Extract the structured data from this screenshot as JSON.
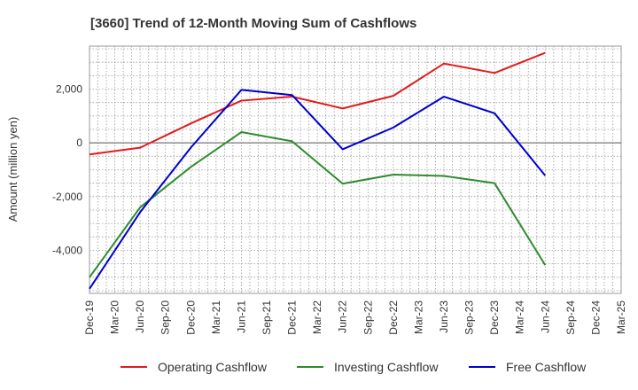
{
  "chart_data": {
    "type": "line",
    "title": "[3660]  Trend of 12-Month Moving Sum of Cashflows",
    "ylabel": "Amount (million yen)",
    "xlabel": "",
    "categories": [
      "Dec-19",
      "Mar-20",
      "Jun-20",
      "Sep-20",
      "Dec-20",
      "Mar-21",
      "Jun-21",
      "Sep-21",
      "Dec-21",
      "Mar-22",
      "Jun-22",
      "Sep-22",
      "Dec-22",
      "Mar-23",
      "Jun-23",
      "Sep-23",
      "Dec-23",
      "Mar-24",
      "Jun-24",
      "Sep-24",
      "Dec-24",
      "Mar-25"
    ],
    "yticks": [
      -4000,
      -2000,
      0,
      2000
    ],
    "ytick_labels": [
      "-4,000",
      "-2,000",
      "0",
      "2,000"
    ],
    "ylim": [
      -5600,
      3600
    ],
    "grid": true,
    "legend_position": "bottom",
    "series": [
      {
        "name": "Operating Cashflow",
        "color": "#e31a1c",
        "values": [
          -430,
          null,
          -180,
          null,
          720,
          null,
          1570,
          null,
          1720,
          null,
          1280,
          null,
          1750,
          null,
          2950,
          null,
          2600,
          null,
          3350,
          null,
          null,
          null
        ]
      },
      {
        "name": "Investing Cashflow",
        "color": "#2e8b2e",
        "values": [
          -5000,
          null,
          -2400,
          null,
          -900,
          null,
          400,
          null,
          60,
          null,
          -1520,
          null,
          -1180,
          null,
          -1230,
          null,
          -1500,
          null,
          -4550,
          null,
          null,
          null
        ]
      },
      {
        "name": "Free Cashflow",
        "color": "#0000cc",
        "values": [
          -5430,
          null,
          -2580,
          null,
          -180,
          null,
          1970,
          null,
          1780,
          null,
          -240,
          null,
          570,
          null,
          1720,
          null,
          1100,
          null,
          -1220,
          null,
          null,
          null
        ]
      }
    ]
  }
}
